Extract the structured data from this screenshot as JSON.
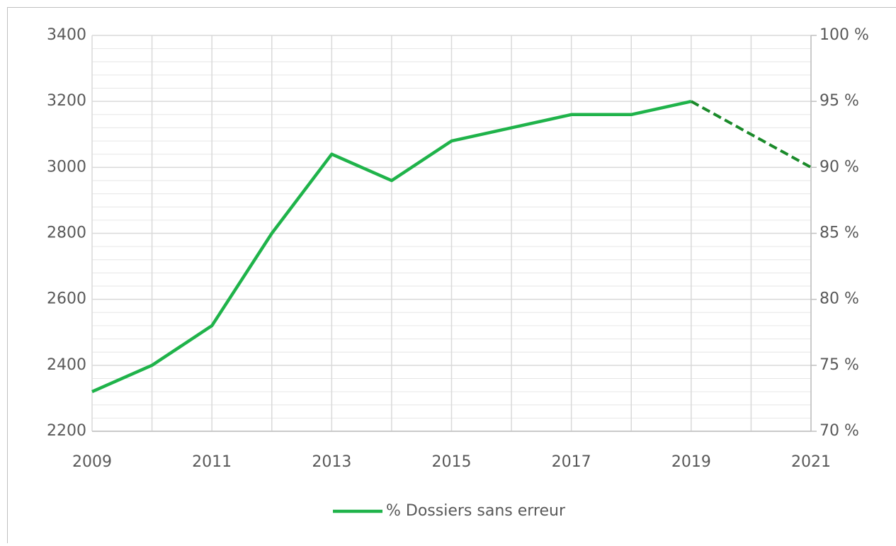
{
  "chart_data": {
    "type": "line",
    "x": [
      2009,
      2010,
      2011,
      2012,
      2013,
      2014,
      2015,
      2016,
      2017,
      2018,
      2019,
      2020,
      2021
    ],
    "xlim": [
      2009,
      2021
    ],
    "xticks": [
      2009,
      2011,
      2013,
      2015,
      2017,
      2019,
      2021
    ],
    "ylim": [
      2200,
      3400
    ],
    "yticks": [
      2200,
      2400,
      2600,
      2800,
      3000,
      3200,
      3400
    ],
    "y2lim": [
      70,
      100
    ],
    "y2ticks": [
      {
        "value": 70,
        "label": "70 %"
      },
      {
        "value": 75,
        "label": "75 %"
      },
      {
        "value": 80,
        "label": "80 %"
      },
      {
        "value": 85,
        "label": "85 %"
      },
      {
        "value": 90,
        "label": "90 %"
      },
      {
        "value": 95,
        "label": "95 %"
      },
      {
        "value": 100,
        "label": "100 %"
      }
    ],
    "grid": true,
    "legend": "bottom",
    "series": [
      {
        "name": "% Dossiers sans erreur",
        "color": "#1fb34a",
        "axis": "y2",
        "values": [
          73,
          75,
          78,
          85,
          91,
          89,
          92,
          93,
          94,
          94,
          95,
          null,
          null
        ]
      },
      {
        "color": "#1a8a2a",
        "axis": "y2",
        "dashed": true,
        "values": [
          null,
          null,
          null,
          null,
          null,
          null,
          null,
          null,
          null,
          null,
          95,
          92.5,
          90
        ]
      }
    ]
  }
}
